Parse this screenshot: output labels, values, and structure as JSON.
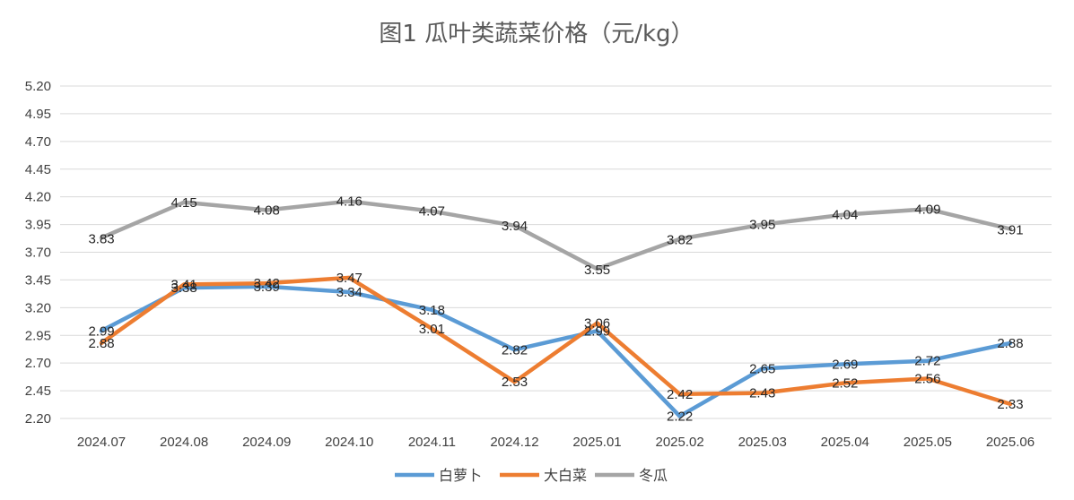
{
  "chart_data": {
    "type": "line",
    "title": "图1  瓜叶类蔬菜价格（元/kg）",
    "categories": [
      "2024.07",
      "2024.08",
      "2024.09",
      "2024.10",
      "2024.11",
      "2024.12",
      "2025.01",
      "2025.02",
      "2025.03",
      "2025.04",
      "2025.05",
      "2025.06"
    ],
    "ylim": [
      2.2,
      5.2
    ],
    "yticks": [
      "2.20",
      "2.45",
      "2.70",
      "2.95",
      "3.20",
      "3.45",
      "3.70",
      "3.95",
      "4.20",
      "4.45",
      "4.70",
      "4.95",
      "5.20"
    ],
    "grid": true,
    "legend_position": "bottom",
    "series": [
      {
        "name": "白萝卜",
        "color": "#5B9BD5",
        "values": [
          2.99,
          3.38,
          3.39,
          3.34,
          3.18,
          2.82,
          2.99,
          2.22,
          2.65,
          2.69,
          2.72,
          2.88
        ]
      },
      {
        "name": "大白菜",
        "color": "#ED7D31",
        "values": [
          2.88,
          3.41,
          3.42,
          3.47,
          3.01,
          2.53,
          3.06,
          2.42,
          2.43,
          2.52,
          2.56,
          2.33
        ]
      },
      {
        "name": "冬瓜",
        "color": "#A5A5A5",
        "values": [
          3.83,
          4.15,
          4.08,
          4.16,
          4.07,
          3.94,
          3.55,
          3.82,
          3.95,
          4.04,
          4.09,
          3.91
        ]
      }
    ],
    "data_labels": [
      [
        "2.99",
        "3.38",
        "3.39",
        "3.34",
        "3.18",
        "2.82",
        "2.99",
        "2.22",
        "2.65",
        "2.69",
        "2.72",
        "2.88"
      ],
      [
        "2.88",
        "3.41",
        "3.42",
        "3.47",
        "3.01",
        "2.53",
        "3.06",
        "2.42",
        "2.43",
        "2.52",
        "2.56",
        "2.33"
      ],
      [
        "3.83",
        "4.15",
        "4.08",
        "4.16",
        "4.07",
        "3.94",
        "3.55",
        "3.82",
        "3.95",
        "4.04",
        "4.09",
        "3.91"
      ]
    ]
  }
}
